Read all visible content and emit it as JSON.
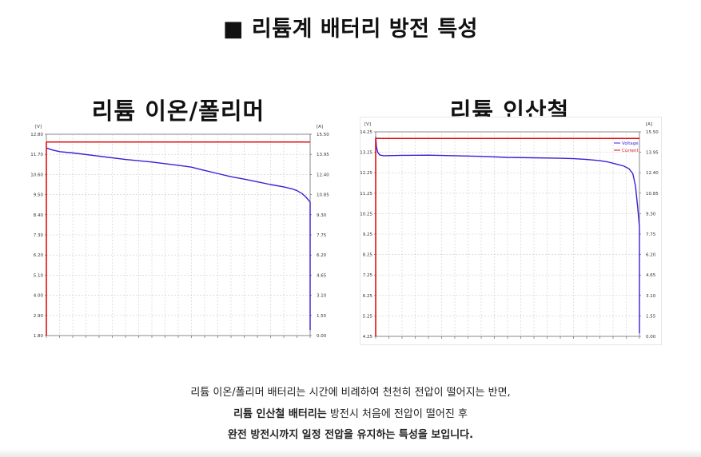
{
  "title": "■ 리튬계 배터리 방전 특성",
  "captions": {
    "line1": "리튬 이온/폴리머 배터리는 시간에 비례하여 천천히 전압이 떨어지는 반면,",
    "line2_bold": "리튬 인산철 배터리는",
    "line2_rest": " 방전시 처음에 전압이 떨어진 후",
    "line3": "완전 방전시까지 일정 전압을 유지하는 특성을 보입니다."
  },
  "colors": {
    "voltage": "#3a1fd6",
    "current": "#e01010",
    "grid": "#cccccc"
  },
  "chart_data": [
    {
      "type": "line",
      "title": "리튬 이온/폴리머",
      "left_unit": "[V]",
      "right_unit": "[A]",
      "left_ticks": [
        "12.80",
        "11.70",
        "10.60",
        "9.50",
        "8.40",
        "7.30",
        "6.20",
        "5.10",
        "4.00",
        "2.90",
        "1.80"
      ],
      "right_ticks": [
        "15.50",
        "13.95",
        "12.40",
        "10.85",
        "9.30",
        "7.75",
        "6.20",
        "4.65",
        "3.10",
        "1.55",
        "0.00"
      ],
      "ylim_left": [
        1.8,
        12.8
      ],
      "ylim_right": [
        0,
        15.5
      ],
      "xlim": [
        0,
        100
      ],
      "legend": [],
      "grid": true,
      "series": [
        {
          "axis": "left",
          "x": [
            0,
            2,
            5,
            10,
            20,
            30,
            40,
            50,
            55,
            60,
            65,
            70,
            75,
            80,
            85,
            90,
            93,
            95,
            97,
            98.5,
            100
          ],
          "values": [
            12.05,
            11.95,
            11.85,
            11.78,
            11.6,
            11.42,
            11.28,
            11.1,
            11.0,
            10.82,
            10.65,
            10.48,
            10.35,
            10.2,
            10.05,
            9.92,
            9.82,
            9.72,
            9.55,
            9.35,
            9.1
          ]
        },
        {
          "axis": "left",
          "x": [
            100,
            100
          ],
          "values": [
            9.1,
            2.1
          ]
        },
        {
          "axis": "right",
          "x": [
            0,
            100
          ],
          "values": [
            14.9,
            14.9
          ]
        },
        {
          "axis": "right",
          "x": [
            0,
            0
          ],
          "values": [
            14.9,
            0
          ]
        }
      ]
    },
    {
      "type": "line",
      "title": "리튬 인산철",
      "left_unit": "[V]",
      "right_unit": "[A]",
      "left_ticks": [
        "14.25",
        "13.25",
        "12.25",
        "11.25",
        "10.25",
        "9.25",
        "8.25",
        "7.25",
        "6.25",
        "5.25",
        "4.25"
      ],
      "right_ticks": [
        "15.50",
        "13.95",
        "12.40",
        "10.85",
        "9.30",
        "7.75",
        "6.20",
        "4.65",
        "3.10",
        "1.55",
        "0.00"
      ],
      "ylim_left": [
        4.25,
        14.25
      ],
      "ylim_right": [
        0,
        15.5
      ],
      "xlim": [
        0,
        100
      ],
      "legend": [
        "Voltage",
        "Current"
      ],
      "grid": true,
      "series": [
        {
          "axis": "left",
          "name": "Voltage",
          "x": [
            0,
            0.3,
            0.8,
            1.5,
            3,
            10,
            20,
            30,
            40,
            50,
            60,
            70,
            75,
            80,
            85,
            88,
            91,
            94,
            96,
            97.5,
            98.5,
            99.3,
            100
          ],
          "values": [
            14.0,
            13.5,
            13.25,
            13.12,
            13.08,
            13.1,
            13.11,
            13.08,
            13.05,
            13.0,
            12.98,
            12.96,
            12.94,
            12.9,
            12.84,
            12.78,
            12.68,
            12.58,
            12.45,
            12.2,
            11.6,
            10.6,
            9.6
          ]
        },
        {
          "axis": "left",
          "x": [
            100,
            100
          ],
          "values": [
            9.6,
            4.4
          ]
        },
        {
          "axis": "right",
          "name": "Current",
          "x": [
            0,
            100
          ],
          "values": [
            15.0,
            15.0
          ]
        },
        {
          "axis": "right",
          "x": [
            0,
            0
          ],
          "values": [
            15.0,
            0
          ]
        }
      ]
    }
  ]
}
